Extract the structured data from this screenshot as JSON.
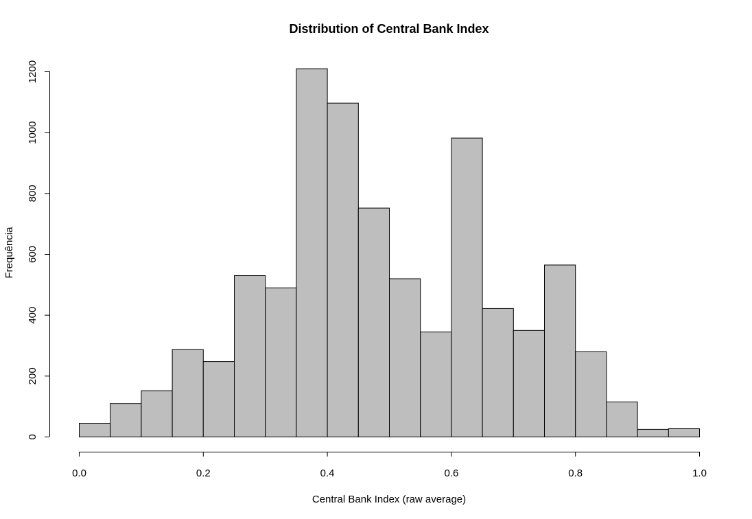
{
  "chart_data": {
    "type": "bar",
    "title": "Distribution of Central Bank Index",
    "xlabel": "Central Bank Index (raw average)",
    "ylabel": "Frequência",
    "bin_edges": [
      0.0,
      0.05,
      0.1,
      0.15,
      0.2,
      0.25,
      0.3,
      0.35,
      0.4,
      0.45,
      0.5,
      0.55,
      0.6,
      0.65,
      0.7,
      0.75,
      0.8,
      0.85,
      0.9,
      0.95,
      1.0
    ],
    "values": [
      45,
      110,
      152,
      287,
      248,
      530,
      490,
      1210,
      1097,
      752,
      520,
      345,
      982,
      422,
      350,
      565,
      280,
      115,
      25,
      27
    ],
    "xlim": [
      0.0,
      1.0
    ],
    "ylim": [
      0,
      1200
    ],
    "x_ticks": [
      "0.0",
      "0.2",
      "0.4",
      "0.6",
      "0.8",
      "1.0"
    ],
    "y_ticks": [
      "0",
      "200",
      "400",
      "600",
      "800",
      "1000",
      "1200"
    ],
    "bar_color": "#bebebe",
    "grid": false,
    "legend": "none"
  }
}
